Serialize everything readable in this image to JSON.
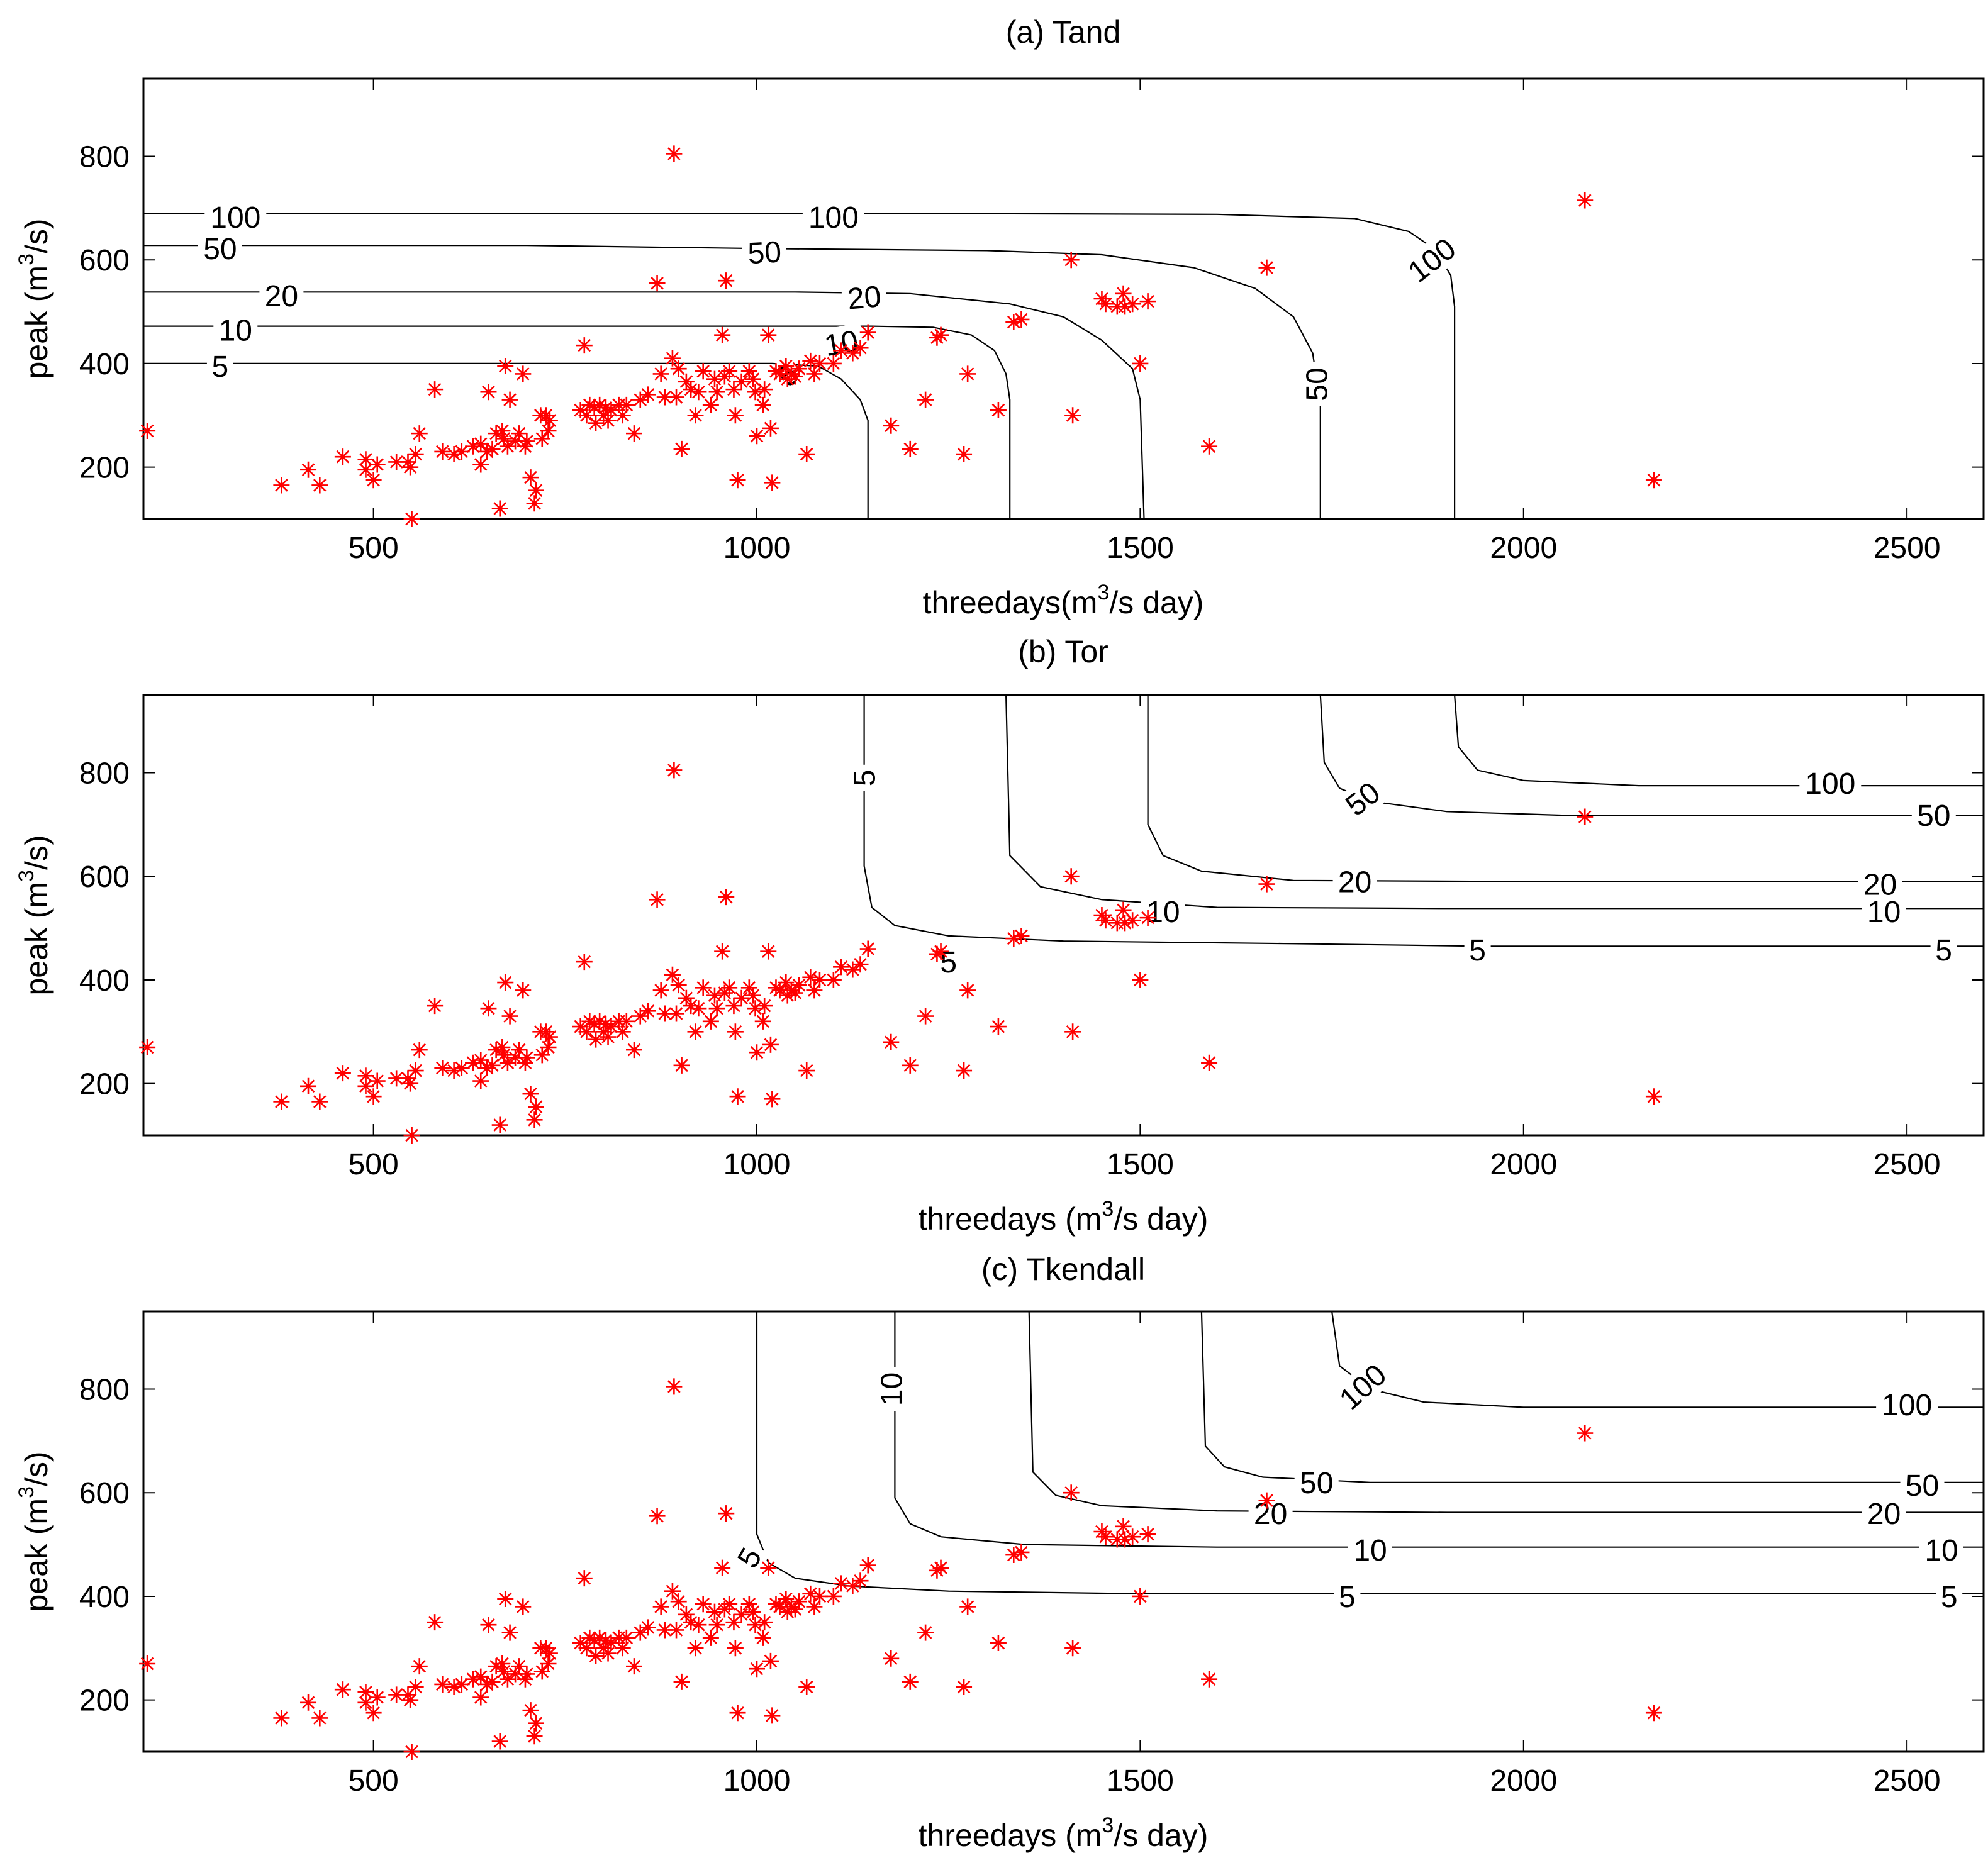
{
  "chart_data": [
    {
      "type": "scatter",
      "title": "(a) Tand",
      "xlabel_pre": "threedays(m",
      "xlabel_sup": "3",
      "xlabel_post": "/s day)",
      "ylabel_pre": "peak (m",
      "ylabel_sup": "3",
      "ylabel_post": "/s)",
      "xlim": [
        200,
        2600
      ],
      "ylim": [
        100,
        950
      ],
      "xticks": [
        "500",
        "1000",
        "1500",
        "2000",
        "2500"
      ],
      "yticks": [
        "200",
        "400",
        "600",
        "800"
      ],
      "contours": [
        {
          "level": "5",
          "points": [
            [
              200,
              400
            ],
            [
              1020,
              400
            ],
            [
              1080,
              395
            ],
            [
              1110,
              370
            ],
            [
              1135,
              330
            ],
            [
              1145,
              290
            ],
            [
              1145,
              100
            ]
          ],
          "labels": [
            [
              300,
              395,
              0
            ],
            [
              1040,
              378,
              -45
            ]
          ]
        },
        {
          "level": "10",
          "points": [
            [
              200,
              472
            ],
            [
              1150,
              472
            ],
            [
              1230,
              470
            ],
            [
              1280,
              455
            ],
            [
              1310,
              425
            ],
            [
              1325,
              380
            ],
            [
              1330,
              330
            ],
            [
              1330,
              100
            ]
          ],
          "labels": [
            [
              320,
              465,
              0
            ],
            [
              1110,
              440,
              -10
            ]
          ]
        },
        {
          "level": "20",
          "points": [
            [
              200,
              538
            ],
            [
              1050,
              538
            ],
            [
              1200,
              535
            ],
            [
              1330,
              515
            ],
            [
              1400,
              490
            ],
            [
              1450,
              445
            ],
            [
              1490,
              390
            ],
            [
              1500,
              330
            ],
            [
              1505,
              100
            ]
          ],
          "labels": [
            [
              380,
              531,
              0
            ],
            [
              1140,
              528,
              -5
            ]
          ]
        },
        {
          "level": "50",
          "points": [
            [
              200,
              628
            ],
            [
              700,
              628
            ],
            [
              1000,
              622
            ],
            [
              1300,
              618
            ],
            [
              1450,
              610
            ],
            [
              1570,
              585
            ],
            [
              1650,
              545
            ],
            [
              1700,
              490
            ],
            [
              1725,
              420
            ],
            [
              1735,
              320
            ],
            [
              1735,
              100
            ]
          ],
          "labels": [
            [
              300,
              622,
              0
            ],
            [
              1010,
              615,
              -3
            ],
            [
              1730,
              360,
              -90
            ]
          ]
        },
        {
          "level": "100",
          "points": [
            [
              200,
              690
            ],
            [
              1100,
              690
            ],
            [
              1600,
              688
            ],
            [
              1780,
              680
            ],
            [
              1850,
              655
            ],
            [
              1885,
              620
            ],
            [
              1905,
              570
            ],
            [
              1910,
              510
            ],
            [
              1910,
              100
            ]
          ],
          "labels": [
            [
              320,
              683,
              0
            ],
            [
              1100,
              683,
              0
            ],
            [
              1880,
              600,
              -38
            ]
          ]
        }
      ]
    },
    {
      "type": "scatter",
      "title": "(b) Tor",
      "xlabel_pre": "threedays (m",
      "xlabel_sup": "3",
      "xlabel_post": "/s day)",
      "ylabel_pre": "peak (m",
      "ylabel_sup": "3",
      "ylabel_post": "/s)",
      "xlim": [
        200,
        2600
      ],
      "ylim": [
        100,
        950
      ],
      "xticks": [
        "500",
        "1000",
        "1500",
        "2000",
        "2500"
      ],
      "yticks": [
        "200",
        "400",
        "600",
        "800"
      ],
      "contours": [
        {
          "level": "5",
          "points": [
            [
              1140,
              950
            ],
            [
              1140,
              620
            ],
            [
              1150,
              540
            ],
            [
              1180,
              505
            ],
            [
              1250,
              485
            ],
            [
              1400,
              475
            ],
            [
              1700,
              470
            ],
            [
              1950,
              465
            ],
            [
              2600,
              465
            ]
          ],
          "labels": [
            [
              1140,
              790,
              -90
            ],
            [
              1250,
              435,
              0
            ],
            [
              1940,
              458,
              0
            ],
            [
              2548,
              458,
              0
            ]
          ]
        },
        {
          "level": "10",
          "points": [
            [
              1325,
              950
            ],
            [
              1330,
              640
            ],
            [
              1370,
              580
            ],
            [
              1450,
              555
            ],
            [
              1600,
              540
            ],
            [
              1900,
              538
            ],
            [
              2600,
              538
            ]
          ],
          "labels": [
            [
              1530,
              532,
              0
            ],
            [
              2470,
              532,
              0
            ]
          ]
        },
        {
          "level": "20",
          "points": [
            [
              1510,
              950
            ],
            [
              1510,
              700
            ],
            [
              1530,
              640
            ],
            [
              1580,
              610
            ],
            [
              1700,
              592
            ],
            [
              2000,
              590
            ],
            [
              2600,
              590
            ]
          ],
          "labels": [
            [
              1780,
              590,
              0
            ],
            [
              2465,
              585,
              0
            ]
          ]
        },
        {
          "level": "50",
          "points": [
            [
              1735,
              950
            ],
            [
              1740,
              820
            ],
            [
              1760,
              770
            ],
            [
              1800,
              745
            ],
            [
              1900,
              725
            ],
            [
              2050,
              718
            ],
            [
              2600,
              718
            ]
          ],
          "labels": [
            [
              1790,
              750,
              -38
            ],
            [
              2535,
              718,
              0
            ]
          ]
        },
        {
          "level": "100",
          "points": [
            [
              1910,
              950
            ],
            [
              1915,
              850
            ],
            [
              1940,
              805
            ],
            [
              2000,
              785
            ],
            [
              2150,
              775
            ],
            [
              2600,
              775
            ]
          ],
          "labels": [
            [
              2400,
              780,
              0
            ]
          ]
        }
      ]
    },
    {
      "type": "scatter",
      "title": "(c) Tkendall",
      "xlabel_pre": "threedays (m",
      "xlabel_sup": "3",
      "xlabel_post": "/s day)",
      "ylabel_pre": "peak (m",
      "ylabel_sup": "3",
      "ylabel_post": "/s)",
      "xlim": [
        200,
        2600
      ],
      "ylim": [
        100,
        950
      ],
      "xticks": [
        "500",
        "1000",
        "1500",
        "2000",
        "2500"
      ],
      "yticks": [
        "200",
        "400",
        "600",
        "800"
      ],
      "contours": [
        {
          "level": "5",
          "points": [
            [
              1000,
              950
            ],
            [
              1000,
              520
            ],
            [
              1015,
              465
            ],
            [
              1050,
              435
            ],
            [
              1120,
              420
            ],
            [
              1250,
              410
            ],
            [
              1500,
              405
            ],
            [
              2600,
              405
            ]
          ],
          "labels": [
            [
              990,
              475,
              -60
            ],
            [
              1770,
              400,
              0
            ],
            [
              2555,
              400,
              0
            ]
          ]
        },
        {
          "level": "10",
          "points": [
            [
              1180,
              950
            ],
            [
              1180,
              590
            ],
            [
              1200,
              540
            ],
            [
              1240,
              515
            ],
            [
              1350,
              500
            ],
            [
              1600,
              495
            ],
            [
              2600,
              495
            ]
          ],
          "labels": [
            [
              1175,
              800,
              -90
            ],
            [
              1800,
              490,
              0
            ],
            [
              2545,
              490,
              0
            ]
          ]
        },
        {
          "level": "20",
          "points": [
            [
              1355,
              950
            ],
            [
              1360,
              640
            ],
            [
              1390,
              595
            ],
            [
              1450,
              575
            ],
            [
              1600,
              565
            ],
            [
              1900,
              562
            ],
            [
              2600,
              562
            ]
          ],
          "labels": [
            [
              1670,
              560,
              0
            ],
            [
              2470,
              560,
              0
            ]
          ]
        },
        {
          "level": "50",
          "points": [
            [
              1580,
              950
            ],
            [
              1585,
              690
            ],
            [
              1610,
              650
            ],
            [
              1660,
              630
            ],
            [
              1800,
              620
            ],
            [
              2600,
              620
            ]
          ],
          "labels": [
            [
              1730,
              620,
              0
            ],
            [
              2520,
              615,
              0
            ]
          ]
        },
        {
          "level": "100",
          "points": [
            [
              1750,
              950
            ],
            [
              1760,
              845
            ],
            [
              1800,
              800
            ],
            [
              1870,
              775
            ],
            [
              2000,
              765
            ],
            [
              2600,
              765
            ]
          ],
          "labels": [
            [
              1790,
              805,
              -42
            ],
            [
              2500,
              770,
              0
            ]
          ]
        }
      ]
    }
  ],
  "observations": [
    [
      205,
      270
    ],
    [
      380,
      165
    ],
    [
      415,
      195
    ],
    [
      430,
      165
    ],
    [
      460,
      220
    ],
    [
      490,
      215
    ],
    [
      490,
      195
    ],
    [
      500,
      175
    ],
    [
      505,
      205
    ],
    [
      530,
      210
    ],
    [
      545,
      210
    ],
    [
      550,
      100
    ],
    [
      548,
      200
    ],
    [
      555,
      225
    ],
    [
      560,
      265
    ],
    [
      580,
      350
    ],
    [
      590,
      230
    ],
    [
      605,
      225
    ],
    [
      615,
      230
    ],
    [
      630,
      240
    ],
    [
      640,
      245
    ],
    [
      640,
      205
    ],
    [
      648,
      230
    ],
    [
      650,
      345
    ],
    [
      655,
      235
    ],
    [
      660,
      265
    ],
    [
      665,
      120
    ],
    [
      668,
      270
    ],
    [
      670,
      255
    ],
    [
      672,
      395
    ],
    [
      675,
      240
    ],
    [
      678,
      330
    ],
    [
      685,
      250
    ],
    [
      690,
      265
    ],
    [
      695,
      380
    ],
    [
      698,
      240
    ],
    [
      700,
      250
    ],
    [
      705,
      180
    ],
    [
      710,
      130
    ],
    [
      712,
      155
    ],
    [
      718,
      300
    ],
    [
      720,
      255
    ],
    [
      725,
      300
    ],
    [
      728,
      270
    ],
    [
      730,
      290
    ],
    [
      775,
      435
    ],
    [
      770,
      310
    ],
    [
      778,
      300
    ],
    [
      782,
      320
    ],
    [
      788,
      315
    ],
    [
      790,
      285
    ],
    [
      795,
      320
    ],
    [
      800,
      300
    ],
    [
      803,
      315
    ],
    [
      806,
      290
    ],
    [
      810,
      310
    ],
    [
      820,
      320
    ],
    [
      825,
      300
    ],
    [
      830,
      320
    ],
    [
      840,
      265
    ],
    [
      848,
      330
    ],
    [
      858,
      340
    ],
    [
      870,
      555
    ],
    [
      875,
      380
    ],
    [
      880,
      335
    ],
    [
      890,
      410
    ],
    [
      892,
      805
    ],
    [
      895,
      335
    ],
    [
      898,
      390
    ],
    [
      902,
      235
    ],
    [
      908,
      365
    ],
    [
      914,
      350
    ],
    [
      920,
      300
    ],
    [
      924,
      345
    ],
    [
      930,
      385
    ],
    [
      940,
      320
    ],
    [
      945,
      370
    ],
    [
      948,
      345
    ],
    [
      955,
      455
    ],
    [
      958,
      375
    ],
    [
      960,
      560
    ],
    [
      964,
      385
    ],
    [
      970,
      350
    ],
    [
      972,
      300
    ],
    [
      975,
      175
    ],
    [
      980,
      365
    ],
    [
      990,
      385
    ],
    [
      995,
      370
    ],
    [
      998,
      345
    ],
    [
      1000,
      260
    ],
    [
      1008,
      320
    ],
    [
      1010,
      350
    ],
    [
      1015,
      455
    ],
    [
      1018,
      275
    ],
    [
      1020,
      170
    ],
    [
      1025,
      385
    ],
    [
      1030,
      380
    ],
    [
      1038,
      395
    ],
    [
      1040,
      370
    ],
    [
      1045,
      380
    ],
    [
      1050,
      375
    ],
    [
      1055,
      390
    ],
    [
      1065,
      225
    ],
    [
      1070,
      405
    ],
    [
      1075,
      380
    ],
    [
      1082,
      400
    ],
    [
      1100,
      400
    ],
    [
      1110,
      425
    ],
    [
      1125,
      420
    ],
    [
      1135,
      430
    ],
    [
      1145,
      460
    ],
    [
      1175,
      280
    ],
    [
      1200,
      235
    ],
    [
      1220,
      330
    ],
    [
      1235,
      450
    ],
    [
      1240,
      455
    ],
    [
      1270,
      225
    ],
    [
      1275,
      380
    ],
    [
      1315,
      310
    ],
    [
      1335,
      480
    ],
    [
      1345,
      485
    ],
    [
      1410,
      600
    ],
    [
      1412,
      300
    ],
    [
      1450,
      525
    ],
    [
      1455,
      515
    ],
    [
      1470,
      510
    ],
    [
      1478,
      535
    ],
    [
      1480,
      510
    ],
    [
      1490,
      515
    ],
    [
      1500,
      400
    ],
    [
      1510,
      520
    ],
    [
      1590,
      240
    ],
    [
      1665,
      585
    ],
    [
      2080,
      715
    ],
    [
      2170,
      175
    ]
  ]
}
